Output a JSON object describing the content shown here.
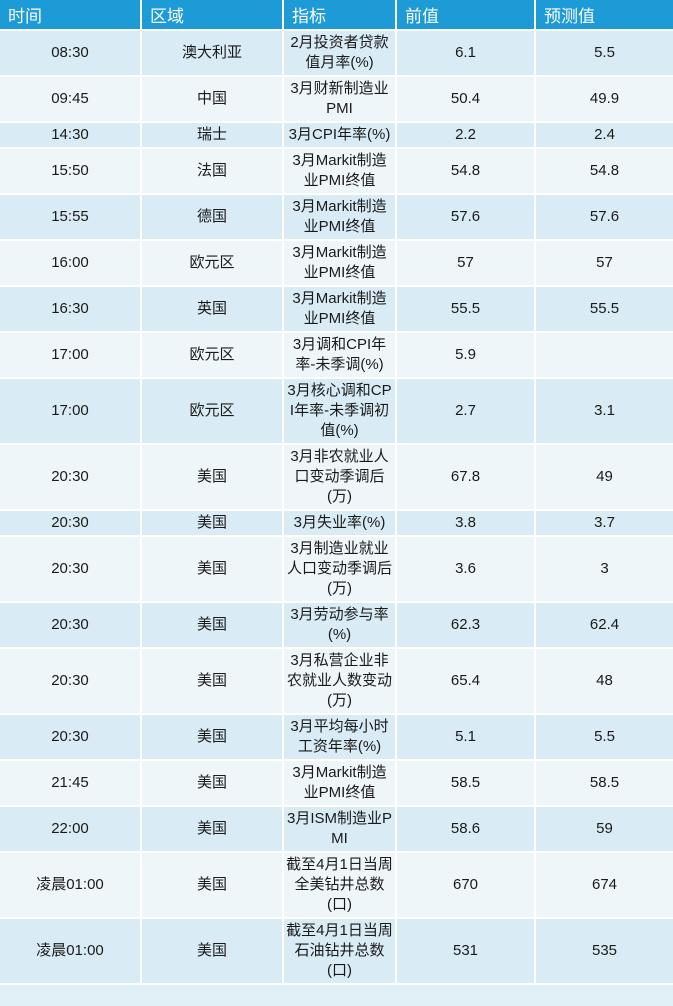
{
  "chart_data": {
    "type": "table",
    "title": "",
    "columns": [
      "时间",
      "区域",
      "指标",
      "前值",
      "预测值"
    ],
    "column_keys": [
      "time",
      "region",
      "indicator",
      "previous",
      "forecast"
    ],
    "rows": [
      [
        "08:30",
        "澳大利亚",
        "2月投资者贷款值月率(%)",
        "6.1",
        "5.5"
      ],
      [
        "09:45",
        "中国",
        "3月财新制造业PMI",
        "50.4",
        "49.9"
      ],
      [
        "14:30",
        "瑞士",
        "3月CPI年率(%)",
        "2.2",
        "2.4"
      ],
      [
        "15:50",
        "法国",
        "3月Markit制造业PMI终值",
        "54.8",
        "54.8"
      ],
      [
        "15:55",
        "德国",
        "3月Markit制造业PMI终值",
        "57.6",
        "57.6"
      ],
      [
        "16:00",
        "欧元区",
        "3月Markit制造业PMI终值",
        "57",
        "57"
      ],
      [
        "16:30",
        "英国",
        "3月Markit制造业PMI终值",
        "55.5",
        "55.5"
      ],
      [
        "17:00",
        "欧元区",
        "3月调和CPI年率-未季调(%)",
        "5.9",
        ""
      ],
      [
        "17:00",
        "欧元区",
        "3月核心调和CPI年率-未季调初值(%)",
        "2.7",
        "3.1"
      ],
      [
        "20:30",
        "美国",
        "3月非农就业人口变动季调后(万)",
        "67.8",
        "49"
      ],
      [
        "20:30",
        "美国",
        "3月失业率(%)",
        "3.8",
        "3.7"
      ],
      [
        "20:30",
        "美国",
        "3月制造业就业人口变动季调后(万)",
        "3.6",
        "3"
      ],
      [
        "20:30",
        "美国",
        "3月劳动参与率(%)",
        "62.3",
        "62.4"
      ],
      [
        "20:30",
        "美国",
        "3月私营企业非农就业人数变动(万)",
        "65.4",
        "48"
      ],
      [
        "20:30",
        "美国",
        "3月平均每小时工资年率(%)",
        "5.1",
        "5.5"
      ],
      [
        "21:45",
        "美国",
        "3月Markit制造业PMI终值",
        "58.5",
        "58.5"
      ],
      [
        "22:00",
        "美国",
        "3月ISM制造业PMI",
        "58.6",
        "59"
      ],
      [
        "凌晨01:00",
        "美国",
        "截至4月1日当周全美钻井总数(口)",
        "670",
        "674"
      ],
      [
        "凌晨01:00",
        "美国",
        "截至4月1日当周石油钻井总数(口)",
        "531",
        "535"
      ]
    ],
    "legend": null,
    "grid": "white 2px separators between all cells and rows"
  },
  "colors": {
    "header_bg": "#1c9bd7",
    "header_text": "#ffffff",
    "row_odd_bg": "#d9ecf6",
    "row_even_bg": "#eef6fa",
    "body_text": "#1a1a1a",
    "grid": "#ffffff",
    "sliver_bg": "#e1eff7"
  }
}
